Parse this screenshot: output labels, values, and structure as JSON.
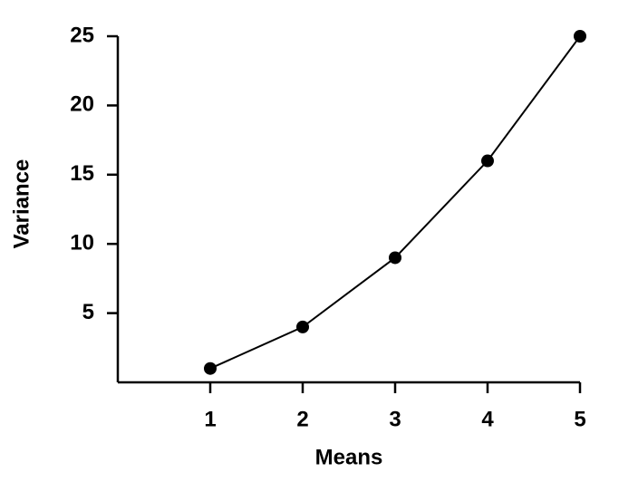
{
  "chart_data": {
    "type": "line",
    "x_label": "Means",
    "y_label": "Variance",
    "x": [
      1,
      2,
      3,
      4,
      5
    ],
    "series": [
      {
        "name": "Variance",
        "color": "#000000",
        "values": [
          1,
          4,
          9,
          16,
          25
        ]
      }
    ],
    "xlim": [
      0,
      5
    ],
    "xticks": [
      1,
      2,
      3,
      4,
      5
    ],
    "ylim": [
      0,
      25
    ],
    "yticks": [
      5,
      10,
      15,
      20,
      25
    ],
    "grid": false
  }
}
